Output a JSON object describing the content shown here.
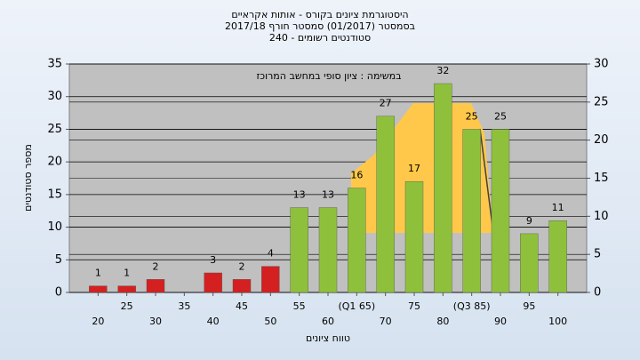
{
  "chart_data": {
    "type": "bar",
    "title": [
      "היסטוגרמת ציונים בקורס - אותות אקראיים",
      "בסמסטר  (01/2017)  סמסטר חורף 2017/18",
      "סטודנטים רשומים - 240"
    ],
    "annotation": "במשימה : ציון סופי במחשב המרוכז",
    "x_label": "טווח ציונים",
    "y_label": "מספר סטודנטים",
    "categories": [
      "20",
      "25",
      "30",
      "35",
      "40",
      "45",
      "50",
      "55",
      "60",
      "(Q1 65)",
      "70",
      "75",
      "80",
      "(Q3 85)",
      "90",
      "95",
      "100"
    ],
    "values": [
      1,
      1,
      2,
      0,
      3,
      2,
      4,
      13,
      13,
      16,
      27,
      17,
      32,
      25,
      25,
      9,
      11
    ],
    "value_labels": [
      "1",
      "1",
      "2",
      null,
      "3",
      "2",
      "4",
      "13",
      "13",
      "16",
      "27",
      "17",
      "32",
      "25",
      "25",
      "9",
      "11"
    ],
    "colors": [
      "#d42020",
      "#d42020",
      "#d42020",
      "#d42020",
      "#d42020",
      "#d42020",
      "#d42020",
      "#8fc03c",
      "#8fc03c",
      "#8fc03c",
      "#8fc03c",
      "#8fc03c",
      "#8fc03c",
      "#8fc03c",
      "#8fc03c",
      "#8fc03c",
      "#8fc03c"
    ],
    "ylim": [
      0,
      35
    ],
    "yticks": [
      0,
      5,
      10,
      15,
      20,
      25,
      30,
      35
    ],
    "y2lim": [
      0,
      30
    ],
    "y2ticks": [
      0,
      5,
      10,
      15,
      20,
      25,
      30
    ],
    "grid": true
  }
}
